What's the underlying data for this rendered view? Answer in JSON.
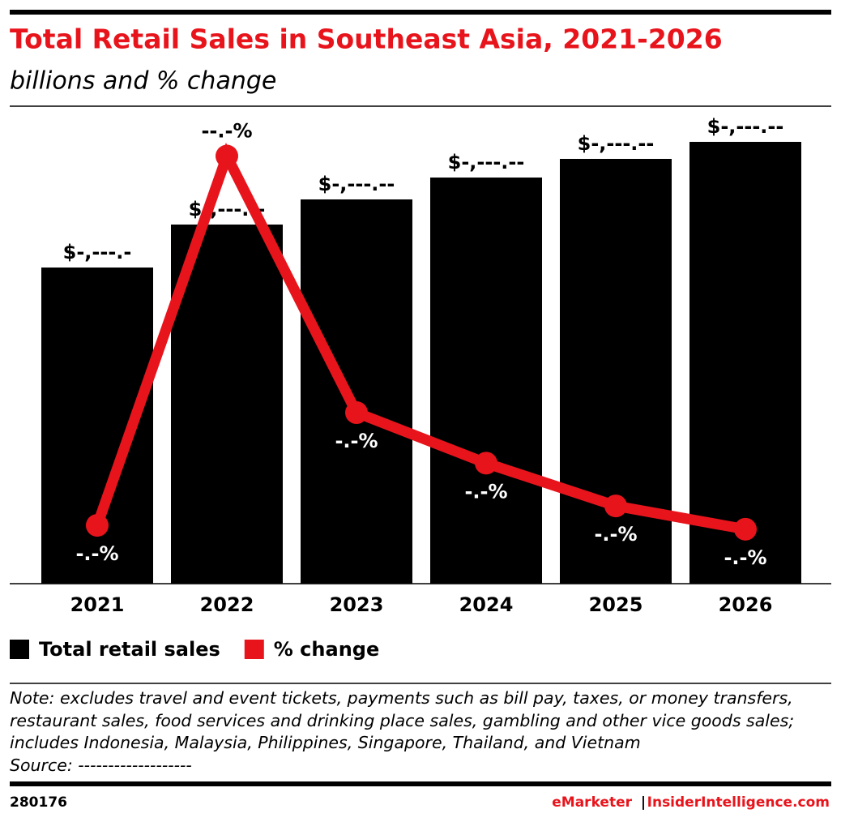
{
  "chart_data": {
    "type": "bar",
    "title": "Total Retail Sales in Southeast Asia, 2021-2026",
    "subtitle": "billions and % change",
    "categories": [
      "2021",
      "2022",
      "2023",
      "2024",
      "2025",
      "2026"
    ],
    "series": [
      {
        "name": "Total retail sales",
        "color": "#000000",
        "values": [
          1170,
          1329,
          1422,
          1503,
          1572,
          1635
        ],
        "value_labels": [
          "$-,---.-",
          "$-,---.--",
          "$-,---.--",
          "$-,---.--",
          "$-,---.--",
          "$-,---.--"
        ]
      },
      {
        "name": "% change",
        "type": "line",
        "axis": "y2",
        "color": "#e8141c",
        "values": [
          4.1,
          13.6,
          7.0,
          5.7,
          4.6,
          4.0
        ],
        "value_labels": [
          "-.-%",
          "--.-%",
          "-.-%",
          "-.-%",
          "-.-%",
          "-.-%"
        ]
      }
    ],
    "ylim": [
      0,
      1755
    ],
    "y2lim": [
      2.6,
      14.8
    ],
    "note": "Note: excludes travel and event tickets, payments such as bill pay, taxes, or money transfers, restaurant sales, food services and drinking place sales, gambling and other vice goods sales; includes Indonesia, Malaysia, Philippines, Singapore, Thailand, and Vietnam",
    "source": "Source: -------------------",
    "chart_id": "280176",
    "brand": "eMarketer",
    "separator": "|",
    "site": "InsiderIntelligence.com"
  }
}
